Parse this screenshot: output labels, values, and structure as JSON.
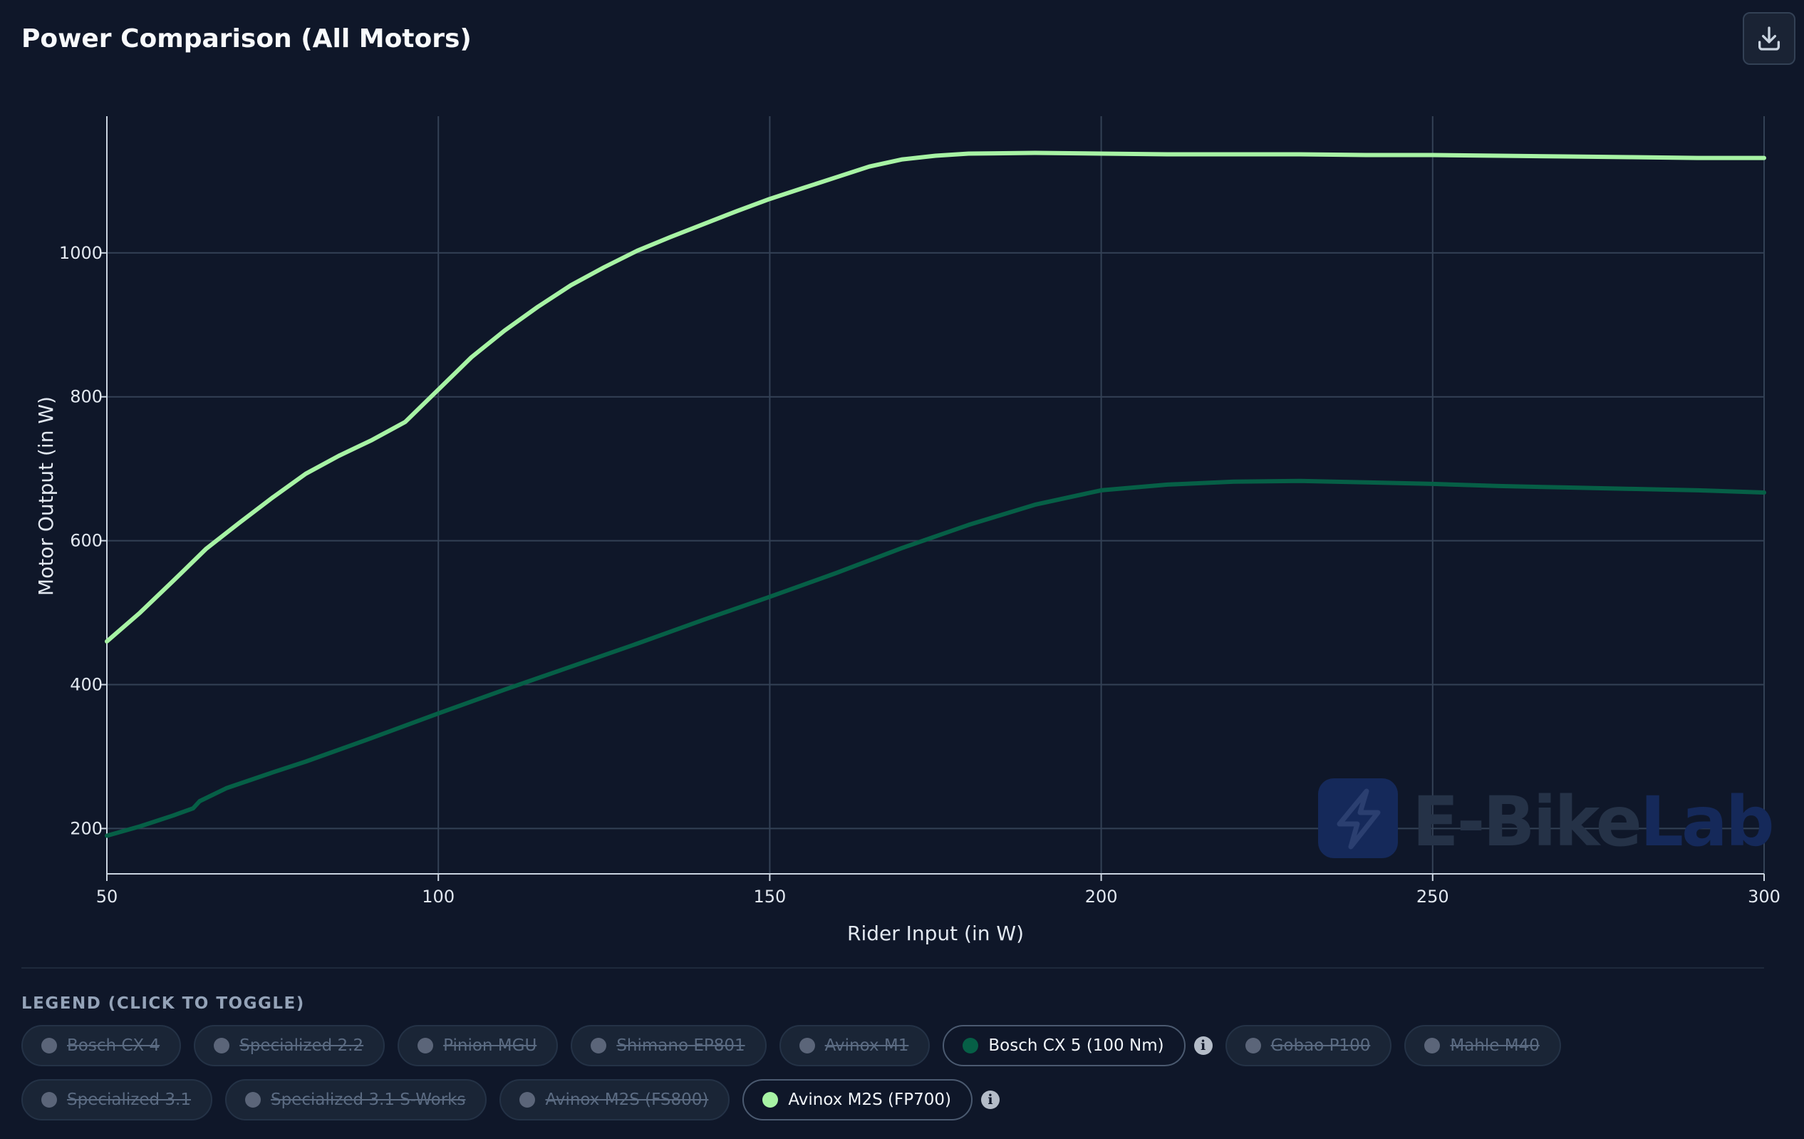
{
  "header": {
    "title": "Power Comparison (All Motors)",
    "download_icon": "download-icon"
  },
  "chart_data": {
    "type": "line",
    "xlabel": "Rider Input (in W)",
    "ylabel": "Motor Output (in W)",
    "xlim": [
      50,
      300
    ],
    "ylim": [
      137,
      1190
    ],
    "x_ticks": [
      50,
      100,
      150,
      200,
      250,
      300
    ],
    "y_ticks": [
      200,
      400,
      600,
      800,
      1000
    ],
    "grid": true,
    "watermark": {
      "text_primary": "E-Bike",
      "text_accent": "Lab",
      "icon": "lightning-bolt-icon"
    },
    "series": [
      {
        "name": "Bosch CX 5 (100 Nm)",
        "color": "#065f46",
        "x": [
          50,
          55,
          60,
          63,
          64,
          68,
          75,
          80,
          90,
          100,
          110,
          120,
          130,
          140,
          150,
          160,
          170,
          180,
          190,
          200,
          210,
          220,
          230,
          240,
          250,
          260,
          270,
          280,
          290,
          300
        ],
        "y": [
          190,
          203,
          218,
          228,
          238,
          256,
          278,
          293,
          326,
          360,
          393,
          425,
          457,
          490,
          522,
          555,
          590,
          622,
          650,
          670,
          678,
          682,
          683,
          681,
          679,
          676,
          674,
          672,
          670,
          667
        ]
      },
      {
        "name": "Avinox M2S (FP700)",
        "color": "#a7f3a4",
        "x": [
          50,
          55,
          60,
          65,
          70,
          75,
          80,
          85,
          90,
          95,
          100,
          105,
          110,
          115,
          120,
          125,
          130,
          135,
          140,
          145,
          150,
          155,
          160,
          165,
          170,
          175,
          180,
          190,
          200,
          210,
          220,
          230,
          240,
          250,
          260,
          270,
          280,
          290,
          300
        ],
        "y": [
          460,
          500,
          544,
          589,
          625,
          660,
          693,
          718,
          740,
          765,
          810,
          855,
          892,
          925,
          955,
          980,
          1003,
          1022,
          1040,
          1058,
          1075,
          1090,
          1105,
          1120,
          1130,
          1135,
          1138,
          1139,
          1138,
          1137,
          1137,
          1137,
          1136,
          1136,
          1135,
          1134,
          1133,
          1132,
          1132
        ]
      }
    ]
  },
  "legend": {
    "title": "LEGEND (CLICK TO TOGGLE)",
    "items": [
      {
        "label": "Bosch CX 4",
        "active": false,
        "color": "#5b6579",
        "info": false
      },
      {
        "label": "Specialized 2.2",
        "active": false,
        "color": "#5b6579",
        "info": false
      },
      {
        "label": "Pinion MGU",
        "active": false,
        "color": "#5b6579",
        "info": false
      },
      {
        "label": "Shimano EP801",
        "active": false,
        "color": "#5b6579",
        "info": false
      },
      {
        "label": "Avinox M1",
        "active": false,
        "color": "#5b6579",
        "info": false
      },
      {
        "label": "Bosch CX 5 (100 Nm)",
        "active": true,
        "color": "#065f46",
        "info": true
      },
      {
        "label": "Gobao P100",
        "active": false,
        "color": "#5b6579",
        "info": false
      },
      {
        "label": "Mahle M40",
        "active": false,
        "color": "#5b6579",
        "info": false
      },
      {
        "label": "Specialized 3.1",
        "active": false,
        "color": "#5b6579",
        "info": false
      },
      {
        "label": "Specialized 3.1 S-Works",
        "active": false,
        "color": "#5b6579",
        "info": false
      },
      {
        "label": "Avinox M2S (FS800)",
        "active": false,
        "color": "#5b6579",
        "info": false
      },
      {
        "label": "Avinox M2S (FP700)",
        "active": true,
        "color": "#a7f3a4",
        "info": true
      }
    ]
  }
}
